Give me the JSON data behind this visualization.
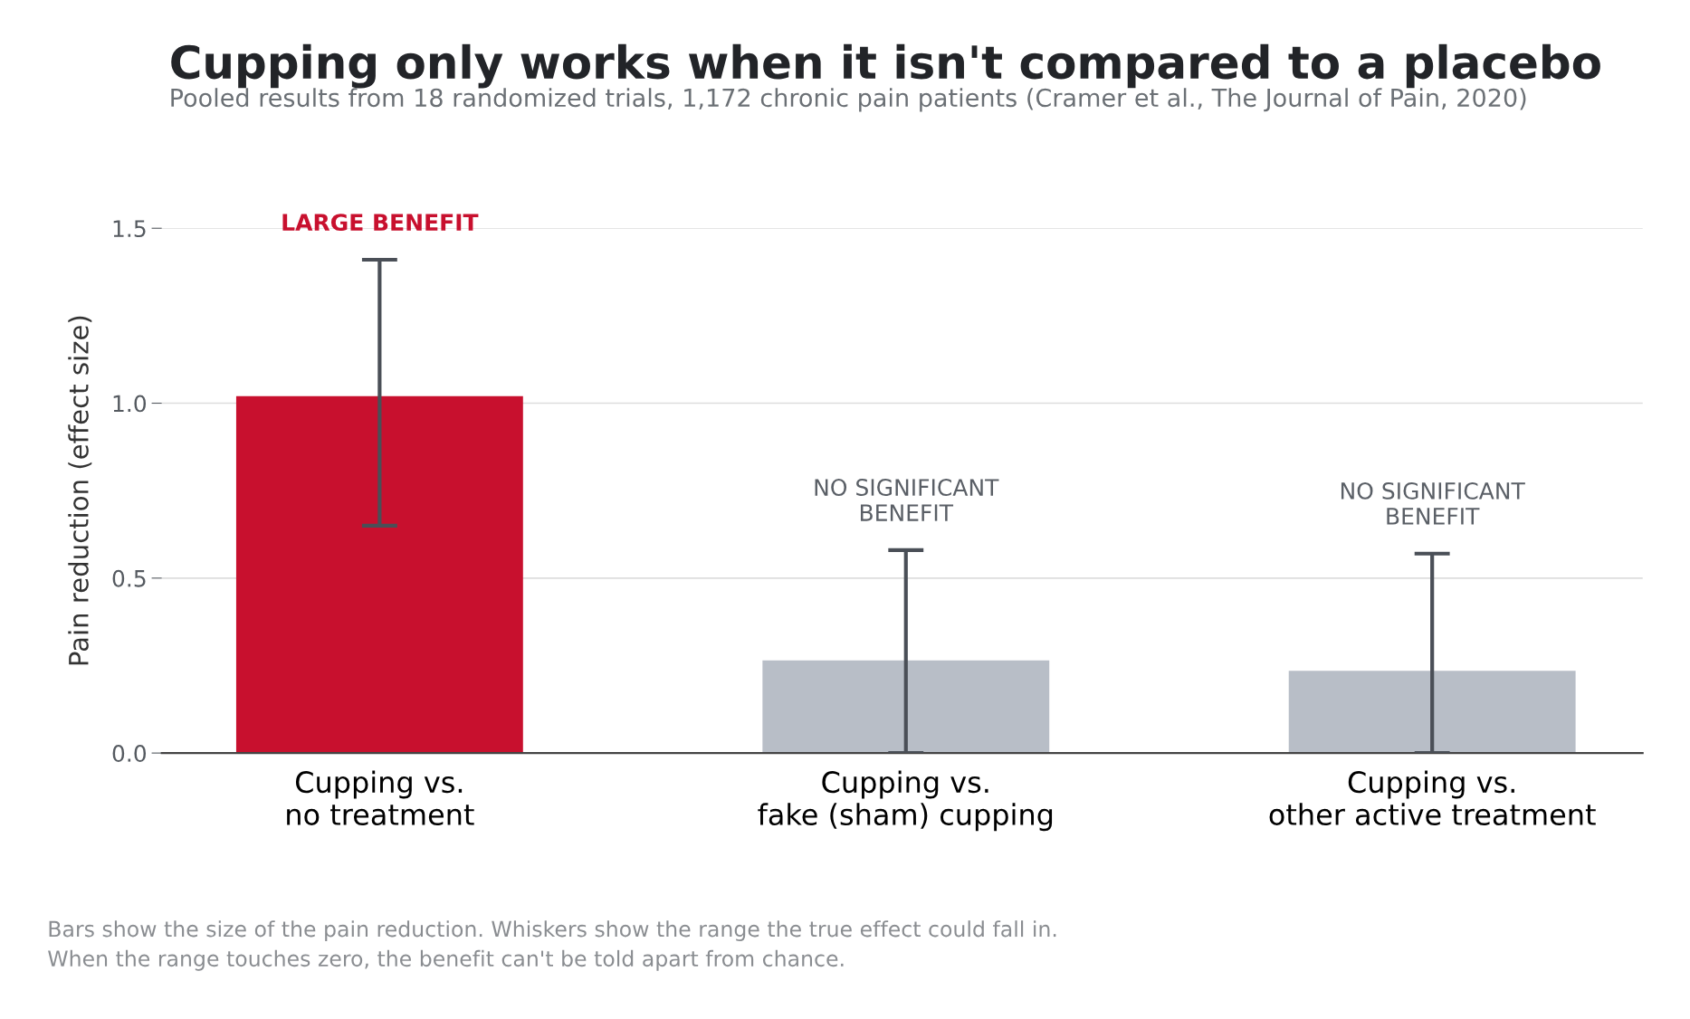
{
  "chart_data": {
    "type": "bar",
    "title": "Cupping only works when it isn't compared to a placebo",
    "subtitle": "Pooled results from 18 randomized trials, 1,172 chronic pain patients (Cramer et al., The Journal of Pain, 2020)",
    "ylabel": "Pain reduction (effect size)",
    "categories": [
      "Cupping vs.\nno treatment",
      "Cupping vs.\nfake (sham) cupping",
      "Cupping vs.\nother active treatment"
    ],
    "values": [
      1.02,
      0.265,
      0.235
    ],
    "colors": [
      "#c8102e",
      "#b8bec7",
      "#b8bec7"
    ],
    "errors": [
      [
        0.65,
        1.41
      ],
      [
        0.0,
        0.58
      ],
      [
        0.0,
        0.57
      ]
    ],
    "ylim": [
      0,
      1.5
    ],
    "yticks": [
      {
        "value": 0,
        "label": "0.0"
      },
      0.5,
      {
        "value": 1,
        "label": "1.0"
      },
      1.5
    ],
    "grid": "y",
    "annotations": [
      "LARGE BENEFIT",
      "NO SIGNIFICANT\nBENEFIT",
      "NO SIGNIFICANT\nBENEFIT",
      "Bars show the size of the pain reduction. Whiskers show the range the true effect could fall in.\nWhen the range touches zero, the benefit can't be told apart from chance."
    ]
  }
}
